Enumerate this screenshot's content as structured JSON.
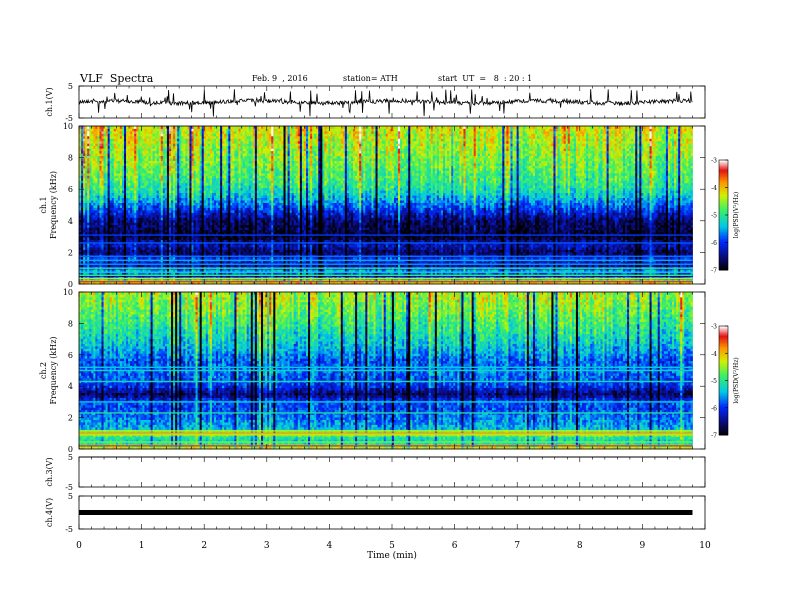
{
  "header": {
    "title": "VLF  Spectra",
    "date": "Feb. 9  , 2016",
    "station": "station= ATH",
    "start": "start  UT  =   8  : 20 : 1"
  },
  "chart_data": [
    {
      "type": "line",
      "id": "ch1-waveform",
      "ylabel": "ch.1(V)",
      "ylim": [
        -5,
        5
      ],
      "yticks": [
        "5",
        "-5"
      ],
      "xlim": [
        0,
        10
      ],
      "x_end": 9.8,
      "baseline": 0,
      "description_color": "#000000"
    },
    {
      "type": "heatmap",
      "id": "ch1-spectrogram",
      "ylabel_lines": [
        "ch.1",
        "Frequency  (kHz)"
      ],
      "ylim": [
        0,
        10
      ],
      "yticks": [
        "0",
        "2",
        "4",
        "6",
        "8",
        "10"
      ],
      "xlim": [
        0,
        10
      ],
      "x_end": 9.8,
      "profile": [
        [
          0.0,
          -3.8
        ],
        [
          0.2,
          -4.5
        ],
        [
          0.5,
          -6.6
        ],
        [
          0.8,
          -5.4
        ],
        [
          1.2,
          -6.4
        ],
        [
          1.6,
          -5.9
        ],
        [
          2.0,
          -6.7
        ],
        [
          2.5,
          -6.2
        ],
        [
          3.0,
          -6.9
        ],
        [
          3.5,
          -6.7
        ],
        [
          4.0,
          -6.6
        ],
        [
          4.6,
          -6.1
        ],
        [
          5.2,
          -5.6
        ],
        [
          5.8,
          -5.2
        ],
        [
          6.5,
          -4.9
        ],
        [
          8.0,
          -4.6
        ],
        [
          9.0,
          -4.4
        ],
        [
          10.0,
          -4.2
        ]
      ],
      "lines": [
        [
          0.15,
          -3.3
        ],
        [
          0.35,
          -4.4
        ],
        [
          0.55,
          -4.9
        ],
        [
          0.75,
          -5.2
        ],
        [
          1.0,
          -5.0
        ],
        [
          1.25,
          -5.6
        ],
        [
          1.5,
          -5.5
        ],
        [
          1.75,
          -5.7
        ],
        [
          2.6,
          -5.8
        ],
        [
          3.1,
          -5.9
        ]
      ]
    },
    {
      "type": "heatmap",
      "id": "ch2-spectrogram",
      "ylabel_lines": [
        "ch.2",
        "Frequency  (kHz)"
      ],
      "ylim": [
        0,
        10
      ],
      "yticks": [
        "0",
        "2",
        "4",
        "6",
        "8",
        "10"
      ],
      "xlim": [
        0,
        10
      ],
      "x_end": 9.8,
      "profile": [
        [
          0.0,
          -4.0
        ],
        [
          0.3,
          -5.0
        ],
        [
          0.6,
          -5.2
        ],
        [
          1.0,
          -4.6
        ],
        [
          1.3,
          -5.4
        ],
        [
          1.8,
          -5.6
        ],
        [
          2.2,
          -5.7
        ],
        [
          2.6,
          -5.9
        ],
        [
          3.0,
          -5.8
        ],
        [
          3.5,
          -6.6
        ],
        [
          4.0,
          -6.0
        ],
        [
          4.5,
          -5.8
        ],
        [
          5.0,
          -5.7
        ],
        [
          5.6,
          -5.8
        ],
        [
          6.2,
          -5.5
        ],
        [
          7.0,
          -5.2
        ],
        [
          8.0,
          -4.9
        ],
        [
          9.0,
          -4.6
        ],
        [
          10.0,
          -4.4
        ]
      ],
      "lines": [
        [
          0.2,
          -3.3
        ],
        [
          0.45,
          -4.6
        ],
        [
          0.9,
          -4.2
        ],
        [
          1.0,
          -3.9
        ],
        [
          1.15,
          -4.3
        ],
        [
          2.3,
          -5.1
        ],
        [
          3.0,
          -5.3
        ],
        [
          4.3,
          -5.2
        ],
        [
          5.0,
          -5.3
        ],
        [
          5.2,
          -5.4
        ]
      ]
    },
    {
      "type": "line",
      "id": "ch3-waveform",
      "ylabel": "ch.3(V)",
      "ylim": [
        -5,
        5
      ],
      "yticks": [
        "5",
        "-5"
      ],
      "xlim": [
        0,
        10
      ],
      "x_end": 9.8,
      "baseline": 5
    },
    {
      "type": "line",
      "id": "ch4-waveform",
      "ylabel": "ch.4(V)",
      "ylim": [
        -5,
        5
      ],
      "yticks": [
        "5",
        "-5"
      ],
      "xlim": [
        0,
        10
      ],
      "x_end": 9.8,
      "baseline": 0
    }
  ],
  "colorbar": {
    "label": "log(PSD(V²/Hz)",
    "range": [
      -7,
      -3
    ],
    "ticks": [
      "-3",
      "-4",
      "-5",
      "-6",
      "-7"
    ]
  },
  "x_axis": {
    "label": "Time  (min)",
    "ticks": [
      "0",
      "1",
      "2",
      "3",
      "4",
      "5",
      "6",
      "7",
      "8",
      "9",
      "10"
    ]
  }
}
